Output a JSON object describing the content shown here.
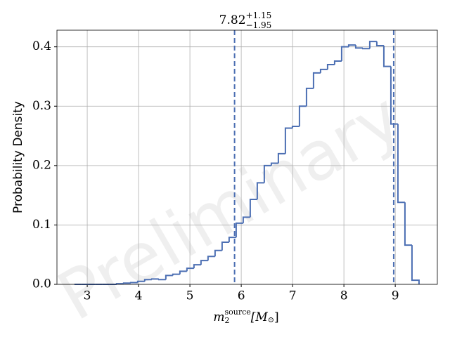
{
  "chart_data": {
    "type": "histogram",
    "xlabel": {
      "base": "m",
      "sub": "2",
      "sup": "source",
      "open": "[M",
      "unit_sub": "⊙",
      "close": "]"
    },
    "ylabel": "Probability Density",
    "watermark": "Preliminary",
    "annotation": {
      "value": 7.82,
      "plus": {
        "value": 1.15,
        "label": "+1.15"
      },
      "minus": {
        "value": -1.95,
        "label": "−1.95"
      }
    },
    "bins": [
      2.75,
      2.887,
      3.024,
      3.161,
      3.298,
      3.435,
      3.572,
      3.709,
      3.846,
      3.983,
      4.12,
      4.257,
      4.394,
      4.531,
      4.668,
      4.805,
      4.942,
      5.079,
      5.216,
      5.353,
      5.49,
      5.627,
      5.764,
      5.901,
      6.038,
      6.175,
      6.312,
      6.449,
      6.586,
      6.723,
      6.86,
      6.997,
      7.134,
      7.271,
      7.408,
      7.545,
      7.682,
      7.819,
      7.956,
      8.093,
      8.23,
      8.367,
      8.504,
      8.641,
      8.778,
      8.915,
      9.052,
      9.189,
      9.326,
      9.463
    ],
    "values": [
      0,
      0,
      0,
      0,
      0,
      0,
      0.001,
      0.002,
      0.003,
      0.005,
      0.008,
      0.009,
      0.008,
      0.015,
      0.017,
      0.022,
      0.027,
      0.033,
      0.04,
      0.047,
      0.057,
      0.071,
      0.079,
      0.103,
      0.113,
      0.143,
      0.171,
      0.2,
      0.204,
      0.22,
      0.263,
      0.266,
      0.3,
      0.33,
      0.356,
      0.362,
      0.37,
      0.376,
      0.4,
      0.403,
      0.398,
      0.397,
      0.409,
      0.402,
      0.367,
      0.27,
      0.138,
      0.066,
      0.007
    ],
    "color": "#4c6fb3",
    "xlim": [
      2.41,
      9.82
    ],
    "ylim": [
      0,
      0.428
    ],
    "xticks": [
      3,
      4,
      5,
      6,
      7,
      8,
      9
    ],
    "yticks": [
      {
        "value": 0,
        "label": "0.0"
      },
      0.1,
      0.2,
      0.3,
      0.4
    ],
    "grid": true
  }
}
